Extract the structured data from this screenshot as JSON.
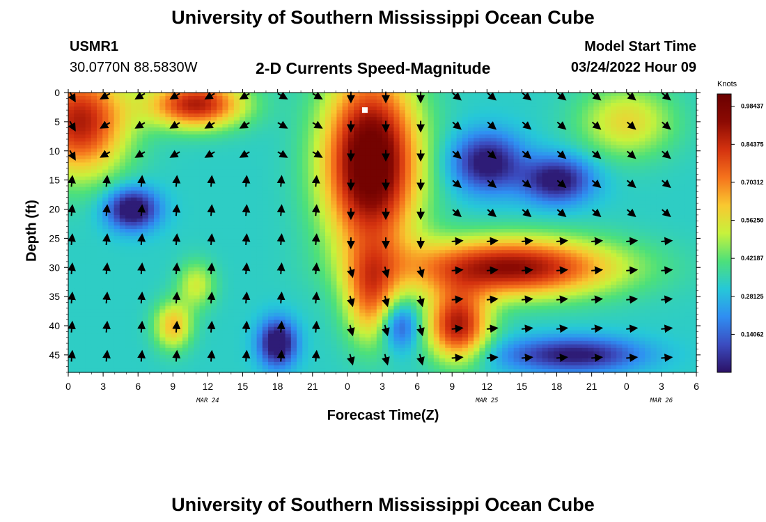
{
  "header": {
    "title": "University of Southern Mississippi Ocean Cube",
    "station_name": "USMR1",
    "station_coords": "30.0770N  88.5830W",
    "subtitle": "2-D Currents Speed-Magnitude",
    "model_start_label": "Model Start Time",
    "model_start_value": "03/24/2022 Hour 09",
    "footer_title": "University of Southern Mississippi Ocean Cube"
  },
  "chart_data": {
    "type": "heatmap",
    "title": "2-D Currents Speed-Magnitude",
    "xlabel": "Forecast Time(Z)",
    "ylabel": "Depth (ft)",
    "x_tick_labels": [
      "0",
      "3",
      "6",
      "9",
      "12",
      "15",
      "18",
      "21",
      "0",
      "3",
      "6",
      "9",
      "12",
      "15",
      "18",
      "21",
      "0",
      "3",
      "6"
    ],
    "x_date_labels": [
      "MAR 24",
      "MAR 25",
      "MAR 26"
    ],
    "y_tick_labels": [
      "0",
      "5",
      "10",
      "15",
      "20",
      "25",
      "30",
      "35",
      "40",
      "45"
    ],
    "xlim_hours": [
      0,
      54
    ],
    "ylim_ft": [
      0,
      48
    ],
    "colorbar": {
      "label": "Knots",
      "ticks": [
        "0.98437",
        "0.84375",
        "0.70312",
        "0.56250",
        "0.42187",
        "0.28125",
        "0.14062"
      ],
      "range": [
        0,
        1.03
      ],
      "colors": [
        "#2b1165",
        "#3b4cc0",
        "#2f8ef2",
        "#26c8d8",
        "#4de07a",
        "#c7f23c",
        "#f9c830",
        "#f5731c",
        "#d4320f",
        "#8c0a03",
        "#6a0000"
      ]
    },
    "vector_grid": {
      "hours": [
        0,
        3,
        6,
        9,
        12,
        15,
        18,
        21,
        24,
        27,
        30,
        33,
        36,
        39,
        42,
        45,
        48,
        51
      ],
      "depths_ft": [
        0.5,
        5.5,
        10.5,
        15.5,
        20.5,
        25.5,
        30.5,
        35.5,
        40.5,
        45.5
      ]
    },
    "marker": {
      "hour": 25.5,
      "depth_ft": 3
    }
  }
}
